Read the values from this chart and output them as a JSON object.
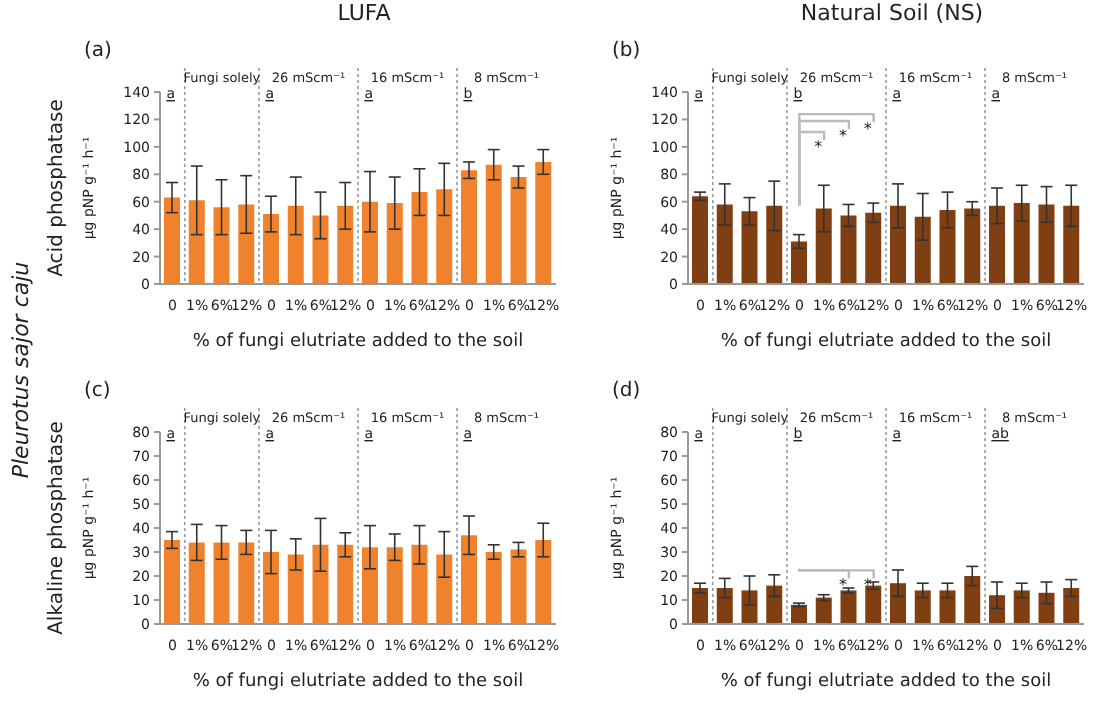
{
  "chart_data": [
    {
      "type": "bar",
      "title": "LUFA",
      "subtitle": "(a)",
      "xlabel": "% of fungi elutriate added to the soil",
      "ylabel": "µg pNP g⁻¹ h⁻¹",
      "categories": [
        "0",
        "1%",
        "6%",
        "12%",
        "0",
        "1%",
        "6%",
        "12%",
        "0",
        "1%",
        "6%",
        "12%",
        "0",
        "1%",
        "6%",
        "12%"
      ],
      "values": [
        63,
        61,
        56,
        58,
        51,
        57,
        50,
        57,
        60,
        59,
        67,
        69,
        83,
        87,
        78,
        89
      ],
      "errors": [
        11,
        25,
        20,
        21,
        13,
        21,
        17,
        17,
        22,
        19,
        17,
        19,
        6,
        11,
        8,
        9
      ],
      "color": "#f0822d",
      "ylim": [
        0,
        140
      ],
      "yticks": [
        0,
        20,
        40,
        60,
        80,
        100,
        120,
        140
      ],
      "annotations": [
        "Fungi solely",
        "26 mScm⁻¹",
        "16 mScm⁻¹",
        "8 mScm⁻¹",
        "a",
        "a",
        "a",
        "b",
        "Acid phosphatase",
        "Pleurotus sajor caju"
      ]
    },
    {
      "type": "bar",
      "title": "Natural Soil (NS)",
      "subtitle": "(b)",
      "xlabel": "% of fungi elutriate added to the soil",
      "ylabel": "µg pNP g⁻¹ h⁻¹",
      "categories": [
        "0",
        "1%",
        "6%",
        "12%",
        "0",
        "1%",
        "6%",
        "12%",
        "0",
        "1%",
        "6%",
        "12%",
        "0",
        "1%",
        "6%",
        "12%"
      ],
      "values": [
        64,
        58,
        53,
        57,
        31,
        55,
        50,
        52,
        57,
        49,
        54,
        55,
        57,
        59,
        58,
        57
      ],
      "errors": [
        3,
        15,
        10,
        18,
        5,
        17,
        8,
        7,
        16,
        17,
        13,
        5,
        13,
        13,
        13,
        15
      ],
      "color": "#7f3f12",
      "ylim": [
        0,
        140
      ],
      "yticks": [
        0,
        20,
        40,
        60,
        80,
        100,
        120,
        140
      ],
      "annotations": [
        "Fungi solely",
        "26 mScm⁻¹",
        "16 mScm⁻¹",
        "8 mScm⁻¹",
        "a",
        "b",
        "a",
        "a",
        "*",
        "*",
        "*"
      ]
    },
    {
      "type": "bar",
      "subtitle": "(c)",
      "xlabel": "% of fungi elutriate added to the soil",
      "ylabel": "µg pNP g⁻¹ h⁻¹",
      "categories": [
        "0",
        "1%",
        "6%",
        "12%",
        "0",
        "1%",
        "6%",
        "12%",
        "0",
        "1%",
        "6%",
        "12%",
        "0",
        "1%",
        "6%",
        "12%"
      ],
      "values": [
        35,
        34,
        34,
        34,
        30,
        29,
        33,
        33,
        32,
        32,
        33,
        29,
        37,
        30,
        31,
        35
      ],
      "errors": [
        3.5,
        7.5,
        7,
        5,
        9,
        6.5,
        11,
        5,
        9,
        5.5,
        8,
        9.5,
        8,
        3,
        3,
        7
      ],
      "color": "#f0822d",
      "ylim": [
        0,
        80
      ],
      "yticks": [
        0,
        10,
        20,
        30,
        40,
        50,
        60,
        70,
        80
      ],
      "annotations": [
        "Fungi solely",
        "26 mScm⁻¹",
        "16 mScm⁻¹",
        "8 mScm⁻¹",
        "a",
        "a",
        "a",
        "a",
        "Alkaline phosphatase"
      ]
    },
    {
      "type": "bar",
      "subtitle": "(d)",
      "xlabel": "% of fungi elutriate added to the soil",
      "ylabel": "µg pNP g⁻¹ h⁻¹",
      "categories": [
        "0",
        "1%",
        "6%",
        "12%",
        "0",
        "1%",
        "6%",
        "12%",
        "0",
        "1%",
        "6%",
        "12%",
        "0",
        "1%",
        "6%",
        "12%"
      ],
      "values": [
        15,
        15,
        14,
        16,
        8,
        11,
        14,
        16,
        17,
        14,
        14,
        20,
        12,
        14,
        13,
        15
      ],
      "errors": [
        2,
        4,
        6,
        4.5,
        0.7,
        1.2,
        1,
        1.5,
        5.5,
        3,
        3,
        4,
        5.5,
        3,
        4.5,
        3.5
      ],
      "color": "#7f3f12",
      "ylim": [
        0,
        80
      ],
      "yticks": [
        0,
        10,
        20,
        30,
        40,
        50,
        60,
        70,
        80
      ],
      "annotations": [
        "Fungi solely",
        "26 mScm⁻¹",
        "16 mScm⁻¹",
        "8 mScm⁻¹",
        "a",
        "b",
        "a",
        "ab",
        "*",
        "*"
      ]
    }
  ]
}
